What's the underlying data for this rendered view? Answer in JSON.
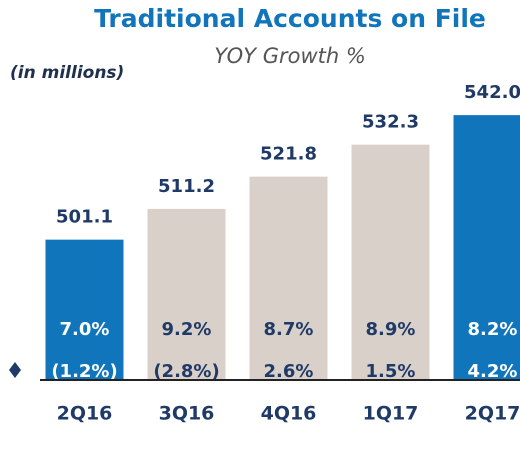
{
  "chart_data": {
    "type": "bar",
    "title": "Traditional Accounts on File",
    "subtitle": "YOY Growth %",
    "unit_label": "(in millions)",
    "categories": [
      "2Q16",
      "3Q16",
      "4Q16",
      "1Q17",
      "2Q17"
    ],
    "values": [
      501.1,
      511.2,
      521.8,
      532.3,
      542.0
    ],
    "value_labels": [
      "501.1",
      "511.2",
      "521.8",
      "532.3",
      "542.0"
    ],
    "colors": [
      "#1175bc",
      "#d9d0c9",
      "#d9d0c9",
      "#d9d0c9",
      "#1175bc"
    ],
    "ylim": [
      455,
      545
    ],
    "growth_rows": [
      {
        "values": [
          7.0,
          9.2,
          8.7,
          8.9,
          8.2
        ],
        "value_labels": [
          "7.0%",
          "9.2%",
          "8.7%",
          "8.9%",
          "8.2%"
        ]
      },
      {
        "values": [
          -1.2,
          -2.8,
          2.6,
          1.5,
          4.2
        ],
        "value_labels": [
          "(1.2%)",
          "(2.8%)",
          "2.6%",
          "1.5%",
          "4.2%"
        ]
      }
    ]
  }
}
